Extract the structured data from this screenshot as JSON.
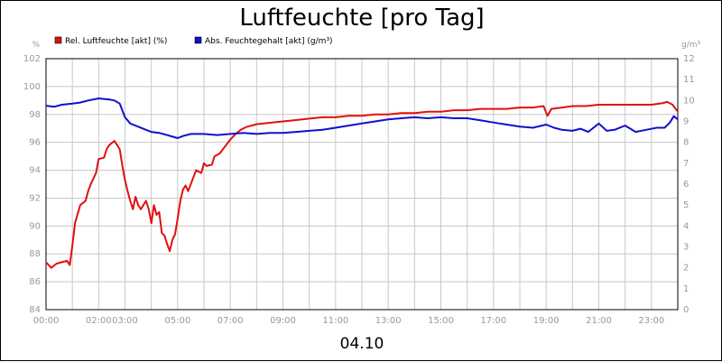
{
  "chart_data": {
    "type": "line",
    "title": "Luftfeuchte [pro Tag]",
    "xlabel": "04.10",
    "y_left_unit": "%",
    "y_right_unit": "g/m³",
    "x_range_hours": [
      0,
      24
    ],
    "y_left_range": [
      84,
      102
    ],
    "y_right_range": [
      0,
      12
    ],
    "grid": true,
    "legend_position": "top-left",
    "x_ticks": [
      "00:00",
      "02:00",
      "03:00",
      "05:00",
      "07:00",
      "09:00",
      "11:00",
      "13:00",
      "15:00",
      "17:00",
      "19:00",
      "21:00",
      "23:00"
    ],
    "x_tick_hours": [
      0,
      2,
      3,
      5,
      7,
      9,
      11,
      13,
      15,
      17,
      19,
      21,
      23
    ],
    "y_left_ticks": [
      "84",
      "86",
      "88",
      "90",
      "92",
      "94",
      "96",
      "98",
      "100",
      "102"
    ],
    "y_right_ticks": [
      "0",
      "1",
      "2",
      "3",
      "4",
      "5",
      "6",
      "7",
      "8",
      "9",
      "10",
      "11",
      "12"
    ],
    "series": [
      {
        "name": "Rel. Luftfeuchte [akt] (%)",
        "color": "#e01010",
        "axis": "left",
        "points": [
          [
            0,
            87.4
          ],
          [
            0.2,
            87.0
          ],
          [
            0.4,
            87.3
          ],
          [
            0.8,
            87.5
          ],
          [
            0.9,
            87.2
          ],
          [
            1.0,
            88.6
          ],
          [
            1.1,
            90.2
          ],
          [
            1.3,
            91.5
          ],
          [
            1.5,
            91.8
          ],
          [
            1.6,
            92.5
          ],
          [
            1.7,
            93.0
          ],
          [
            1.9,
            93.8
          ],
          [
            2.0,
            94.8
          ],
          [
            2.2,
            94.9
          ],
          [
            2.3,
            95.5
          ],
          [
            2.4,
            95.8
          ],
          [
            2.6,
            96.1
          ],
          [
            2.8,
            95.5
          ],
          [
            2.9,
            94.3
          ],
          [
            3.0,
            93.3
          ],
          [
            3.1,
            92.5
          ],
          [
            3.2,
            91.8
          ],
          [
            3.3,
            91.2
          ],
          [
            3.4,
            92.1
          ],
          [
            3.5,
            91.5
          ],
          [
            3.6,
            91.2
          ],
          [
            3.8,
            91.8
          ],
          [
            3.9,
            91.2
          ],
          [
            4.0,
            90.2
          ],
          [
            4.1,
            91.5
          ],
          [
            4.2,
            90.8
          ],
          [
            4.3,
            91.0
          ],
          [
            4.4,
            89.5
          ],
          [
            4.5,
            89.3
          ],
          [
            4.6,
            88.7
          ],
          [
            4.7,
            88.2
          ],
          [
            4.8,
            89.0
          ],
          [
            4.9,
            89.4
          ],
          [
            5.0,
            90.5
          ],
          [
            5.1,
            91.8
          ],
          [
            5.2,
            92.6
          ],
          [
            5.3,
            92.9
          ],
          [
            5.4,
            92.5
          ],
          [
            5.6,
            93.5
          ],
          [
            5.7,
            94.0
          ],
          [
            5.9,
            93.8
          ],
          [
            6.0,
            94.5
          ],
          [
            6.1,
            94.3
          ],
          [
            6.3,
            94.4
          ],
          [
            6.4,
            95.0
          ],
          [
            6.6,
            95.2
          ],
          [
            6.8,
            95.7
          ],
          [
            7.0,
            96.2
          ],
          [
            7.2,
            96.6
          ],
          [
            7.4,
            96.9
          ],
          [
            7.6,
            97.1
          ],
          [
            8.0,
            97.3
          ],
          [
            8.5,
            97.4
          ],
          [
            9.0,
            97.5
          ],
          [
            9.5,
            97.6
          ],
          [
            10.0,
            97.7
          ],
          [
            10.5,
            97.8
          ],
          [
            11.0,
            97.8
          ],
          [
            11.5,
            97.9
          ],
          [
            12.0,
            97.9
          ],
          [
            12.5,
            98.0
          ],
          [
            13.0,
            98.0
          ],
          [
            13.5,
            98.1
          ],
          [
            14.0,
            98.1
          ],
          [
            14.5,
            98.2
          ],
          [
            15.0,
            98.2
          ],
          [
            15.5,
            98.3
          ],
          [
            16.0,
            98.3
          ],
          [
            16.5,
            98.4
          ],
          [
            17.0,
            98.4
          ],
          [
            17.5,
            98.4
          ],
          [
            18.0,
            98.5
          ],
          [
            18.5,
            98.5
          ],
          [
            18.9,
            98.6
          ],
          [
            19.05,
            97.9
          ],
          [
            19.2,
            98.4
          ],
          [
            19.6,
            98.5
          ],
          [
            20.0,
            98.6
          ],
          [
            20.5,
            98.6
          ],
          [
            21.0,
            98.7
          ],
          [
            21.5,
            98.7
          ],
          [
            22.0,
            98.7
          ],
          [
            22.5,
            98.7
          ],
          [
            23.0,
            98.7
          ],
          [
            23.4,
            98.8
          ],
          [
            23.6,
            98.9
          ],
          [
            23.8,
            98.7
          ],
          [
            24.0,
            98.2
          ]
        ]
      },
      {
        "name": "Abs. Feuchtegehalt [akt] (g/m³)",
        "color": "#1010d0",
        "axis": "right",
        "points": [
          [
            0,
            9.75
          ],
          [
            0.3,
            9.7
          ],
          [
            0.6,
            9.8
          ],
          [
            1.0,
            9.85
          ],
          [
            1.3,
            9.9
          ],
          [
            1.6,
            10.0
          ],
          [
            2.0,
            10.1
          ],
          [
            2.4,
            10.05
          ],
          [
            2.6,
            10.0
          ],
          [
            2.8,
            9.85
          ],
          [
            3.0,
            9.2
          ],
          [
            3.2,
            8.9
          ],
          [
            3.5,
            8.75
          ],
          [
            3.8,
            8.6
          ],
          [
            4.0,
            8.5
          ],
          [
            4.3,
            8.45
          ],
          [
            4.6,
            8.35
          ],
          [
            5.0,
            8.2
          ],
          [
            5.2,
            8.3
          ],
          [
            5.5,
            8.4
          ],
          [
            6.0,
            8.4
          ],
          [
            6.5,
            8.35
          ],
          [
            7.0,
            8.4
          ],
          [
            7.5,
            8.45
          ],
          [
            8.0,
            8.4
          ],
          [
            8.5,
            8.45
          ],
          [
            9.0,
            8.45
          ],
          [
            9.5,
            8.5
          ],
          [
            10.0,
            8.55
          ],
          [
            10.5,
            8.6
          ],
          [
            11.0,
            8.7
          ],
          [
            11.5,
            8.8
          ],
          [
            12.0,
            8.9
          ],
          [
            12.5,
            9.0
          ],
          [
            13.0,
            9.1
          ],
          [
            13.5,
            9.15
          ],
          [
            14.0,
            9.2
          ],
          [
            14.5,
            9.15
          ],
          [
            15.0,
            9.2
          ],
          [
            15.5,
            9.15
          ],
          [
            16.0,
            9.15
          ],
          [
            16.5,
            9.05
          ],
          [
            17.0,
            8.95
          ],
          [
            17.5,
            8.85
          ],
          [
            18.0,
            8.75
          ],
          [
            18.5,
            8.7
          ],
          [
            19.0,
            8.85
          ],
          [
            19.3,
            8.7
          ],
          [
            19.6,
            8.6
          ],
          [
            20.0,
            8.55
          ],
          [
            20.3,
            8.65
          ],
          [
            20.6,
            8.5
          ],
          [
            21.0,
            8.9
          ],
          [
            21.3,
            8.55
          ],
          [
            21.6,
            8.6
          ],
          [
            22.0,
            8.8
          ],
          [
            22.4,
            8.5
          ],
          [
            22.8,
            8.6
          ],
          [
            23.2,
            8.7
          ],
          [
            23.5,
            8.7
          ],
          [
            23.7,
            8.95
          ],
          [
            23.85,
            9.25
          ],
          [
            24.0,
            9.1
          ]
        ]
      }
    ]
  }
}
